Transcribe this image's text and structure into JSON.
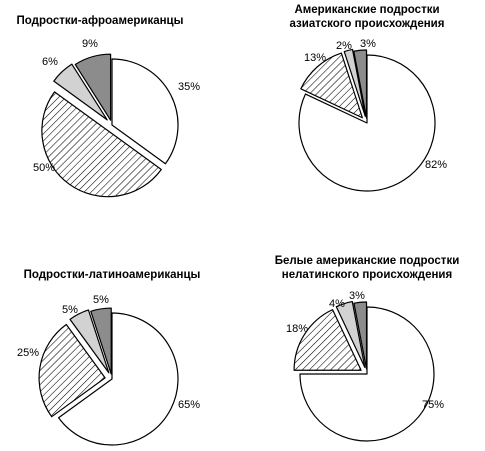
{
  "chart_data": [
    {
      "type": "pie",
      "title": "Подростки-афроамериканцы",
      "slices": [
        {
          "label": "35%",
          "value": 35,
          "fill": "white"
        },
        {
          "label": "50%",
          "value": 50,
          "fill": "hatch"
        },
        {
          "label": "6%",
          "value": 6,
          "fill": "light"
        },
        {
          "label": "9%",
          "value": 9,
          "fill": "dark"
        }
      ]
    },
    {
      "type": "pie",
      "title": "Американские подростки\nазиатского происхождения",
      "slices": [
        {
          "label": "82%",
          "value": 82,
          "fill": "white"
        },
        {
          "label": "13%",
          "value": 13,
          "fill": "hatch"
        },
        {
          "label": "2%",
          "value": 2,
          "fill": "light"
        },
        {
          "label": "3%",
          "value": 3,
          "fill": "dark"
        }
      ]
    },
    {
      "type": "pie",
      "title": "Подростки-латиноамериканцы",
      "slices": [
        {
          "label": "65%",
          "value": 65,
          "fill": "white"
        },
        {
          "label": "25%",
          "value": 25,
          "fill": "hatch"
        },
        {
          "label": "5%",
          "value": 5,
          "fill": "light"
        },
        {
          "label": "5%",
          "value": 5,
          "fill": "dark"
        }
      ]
    },
    {
      "type": "pie",
      "title": "Белые американские подростки\nнелатинского происхождения",
      "slices": [
        {
          "label": "75%",
          "value": 75,
          "fill": "white"
        },
        {
          "label": "18%",
          "value": 18,
          "fill": "hatch"
        },
        {
          "label": "4%",
          "value": 4,
          "fill": "light"
        },
        {
          "label": "3%",
          "value": 3,
          "fill": "dark"
        }
      ]
    }
  ],
  "colors": {
    "white": "#ffffff",
    "light": "#d2d2d2",
    "dark": "#8c8c8c",
    "stroke": "#000000"
  }
}
